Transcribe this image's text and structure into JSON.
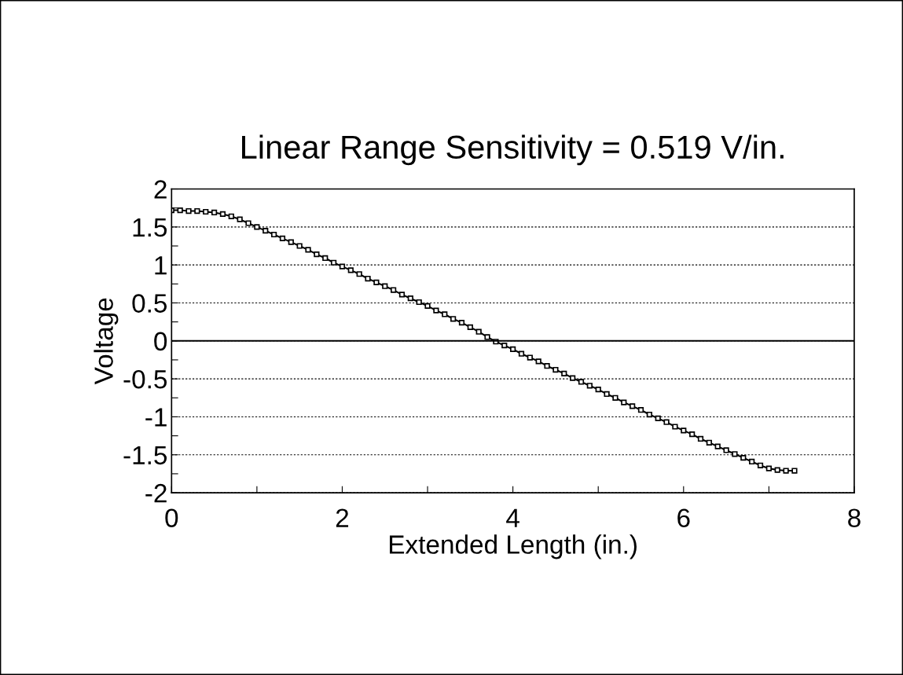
{
  "chart_data": {
    "type": "line",
    "title": "Linear Range Sensitivity = 0.519 V/in.",
    "xlabel": "Extended Length (in.)",
    "ylabel": "Voltage",
    "x": [
      0.0,
      0.1,
      0.2,
      0.3,
      0.4,
      0.5,
      0.6,
      0.7,
      0.8,
      0.9,
      1.0,
      1.1,
      1.2,
      1.3,
      1.4,
      1.5,
      1.6,
      1.7,
      1.8,
      1.9,
      2.0,
      2.1,
      2.2,
      2.3,
      2.4,
      2.5,
      2.6,
      2.7,
      2.8,
      2.9,
      3.0,
      3.1,
      3.2,
      3.3,
      3.4,
      3.5,
      3.6,
      3.7,
      3.8,
      3.9,
      4.0,
      4.1,
      4.2,
      4.3,
      4.4,
      4.5,
      4.6,
      4.7,
      4.8,
      4.9,
      5.0,
      5.1,
      5.2,
      5.3,
      5.4,
      5.5,
      5.6,
      5.7,
      5.8,
      5.9,
      6.0,
      6.1,
      6.2,
      6.3,
      6.4,
      6.5,
      6.6,
      6.7,
      6.8,
      6.9,
      7.0,
      7.1,
      7.2,
      7.3
    ],
    "series": [
      {
        "color": "#000000",
        "values": [
          1.72,
          1.72,
          1.71,
          1.71,
          1.7,
          1.69,
          1.67,
          1.64,
          1.6,
          1.55,
          1.5,
          1.45,
          1.4,
          1.35,
          1.3,
          1.25,
          1.2,
          1.14,
          1.09,
          1.03,
          0.98,
          0.93,
          0.88,
          0.82,
          0.77,
          0.72,
          0.67,
          0.61,
          0.56,
          0.51,
          0.46,
          0.4,
          0.35,
          0.29,
          0.24,
          0.18,
          0.12,
          0.05,
          -0.01,
          -0.06,
          -0.11,
          -0.17,
          -0.22,
          -0.27,
          -0.33,
          -0.38,
          -0.43,
          -0.49,
          -0.54,
          -0.59,
          -0.64,
          -0.7,
          -0.75,
          -0.81,
          -0.86,
          -0.91,
          -0.97,
          -1.02,
          -1.07,
          -1.13,
          -1.18,
          -1.23,
          -1.29,
          -1.34,
          -1.39,
          -1.44,
          -1.49,
          -1.54,
          -1.59,
          -1.64,
          -1.68,
          -1.7,
          -1.71,
          -1.71
        ]
      }
    ],
    "xlim": [
      0,
      8
    ],
    "ylim": [
      -2,
      2
    ],
    "xticks": [
      0,
      {
        "value": 1,
        "label": null
      },
      2,
      {
        "value": 3,
        "label": null
      },
      4,
      {
        "value": 5,
        "label": null
      },
      6,
      {
        "value": 7,
        "label": null
      },
      8
    ],
    "yticks": [
      -2,
      {
        "value": -1.75,
        "label": null
      },
      -1.5,
      {
        "value": -1.25,
        "label": null
      },
      -1,
      {
        "value": -0.75,
        "label": null
      },
      -0.5,
      {
        "value": -0.25,
        "label": null
      },
      0,
      {
        "value": 0.25,
        "label": null
      },
      0.5,
      {
        "value": 0.75,
        "label": null
      },
      1,
      {
        "value": 1.25,
        "label": null
      },
      1.5,
      {
        "value": 1.75,
        "label": null
      },
      2
    ],
    "ref_lines": [
      {
        "axis": "y",
        "value": 0,
        "color": "#000000",
        "line_style": "solid"
      }
    ],
    "grid": "y",
    "marker": "square",
    "line_style": "solid",
    "legend": false
  }
}
